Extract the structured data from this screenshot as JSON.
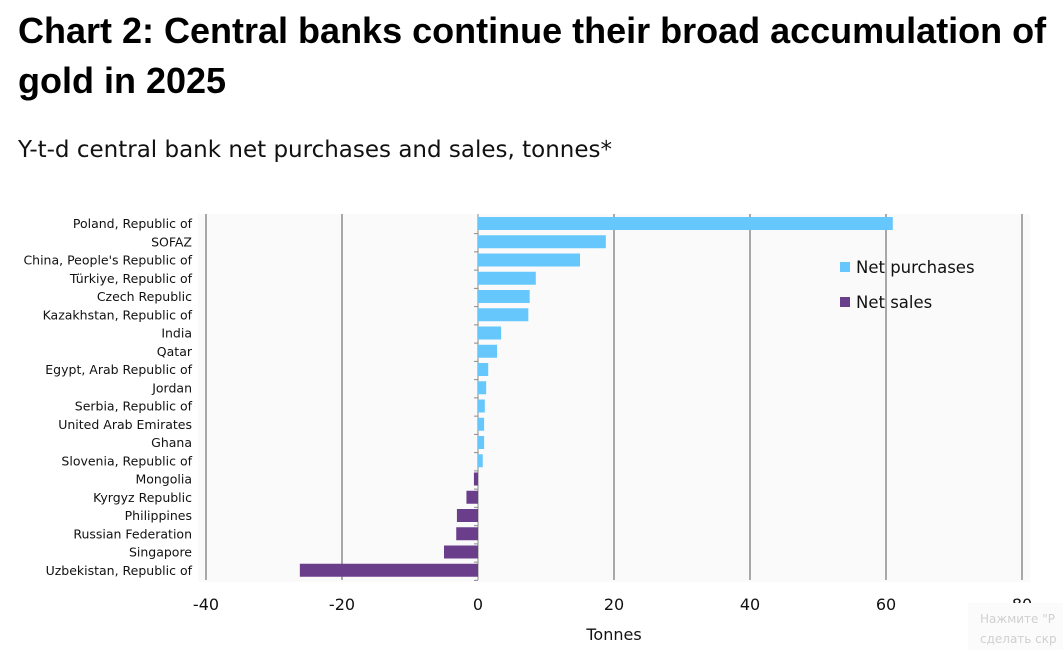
{
  "header": {
    "title": "Chart 2: Central banks continue their broad accumulation of gold in 2025",
    "subtitle": "Y-t-d central bank net purchases and sales, tonnes*"
  },
  "overlay": {
    "line1": "Нажмите \"Р",
    "line2": "сделать скр"
  },
  "chart_data": {
    "type": "bar",
    "orientation": "horizontal",
    "xlabel": "Tonnes",
    "xlim": [
      -40,
      80
    ],
    "xticks": [
      -40,
      -20,
      0,
      20,
      40,
      60,
      80
    ],
    "grid": true,
    "legend_position": "top-right",
    "categories": [
      "Poland, Republic of",
      "SOFAZ",
      "China, People's Republic of",
      "Türkiye, Republic of",
      "Czech Republic",
      "Kazakhstan, Republic of",
      "India",
      "Qatar",
      "Egypt, Arab Republic of",
      "Jordan",
      "Serbia, Republic of",
      "United Arab Emirates",
      "Ghana",
      "Slovenia, Republic of",
      "Mongolia",
      "Kyrgyz Republic",
      "Philippines",
      "Russian Federation",
      "Singapore",
      "Uzbekistan, Republic of"
    ],
    "values": [
      61,
      18.8,
      15,
      8.5,
      7.6,
      7.4,
      3.4,
      2.8,
      1.5,
      1.2,
      1.0,
      0.9,
      0.9,
      0.7,
      -0.6,
      -1.7,
      -3.1,
      -3.2,
      -5,
      -26.2
    ],
    "series": [
      {
        "name": "Net purchases",
        "color": "#66c7fc"
      },
      {
        "name": "Net sales",
        "color": "#6b3e8c"
      }
    ]
  }
}
